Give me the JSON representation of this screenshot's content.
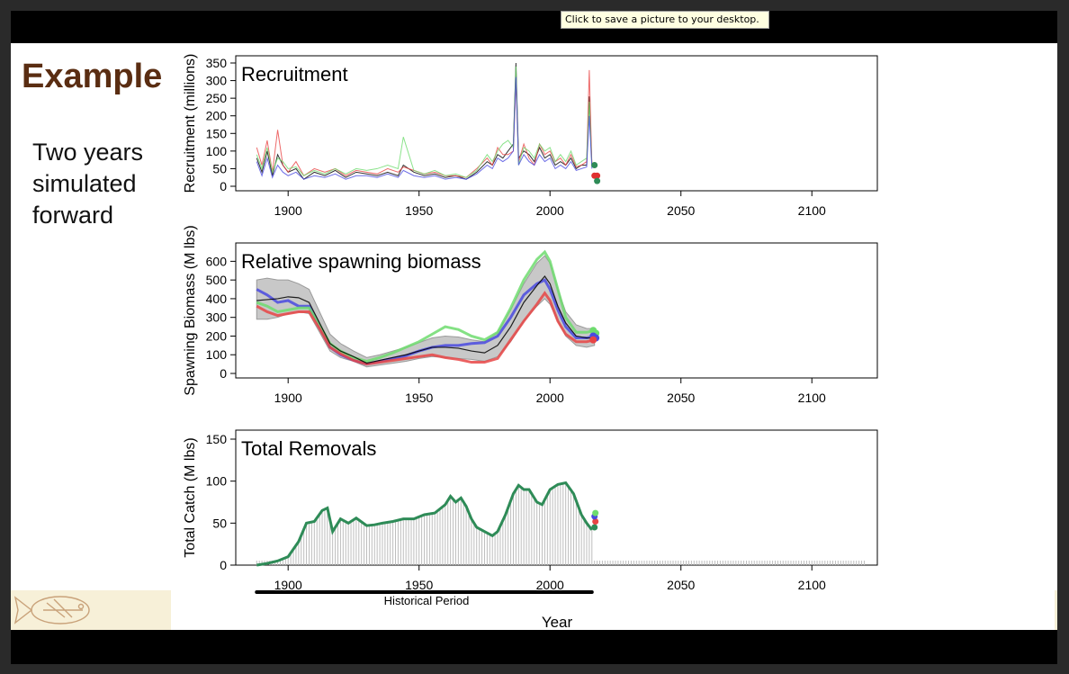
{
  "tooltip": "Click to save a picture to your desktop.",
  "slide": {
    "title": "Example",
    "bullet": "Two years simulated forward"
  },
  "colors": {
    "title": "#5a2d12",
    "red": "#e84545",
    "green": "#6edc6e",
    "blue": "#4a4ae0",
    "black": "#000000",
    "ci": "#c8c8c8",
    "catch": "#2e8b57",
    "bars": "#bdbdbd"
  },
  "x_label": "Year",
  "period_label": "Historical Period",
  "chart_data": [
    {
      "type": "line",
      "title": "Recruitment",
      "ylabel": "Recruitment (millions)",
      "xlim": [
        1880,
        2125
      ],
      "ylim": [
        0,
        350
      ],
      "xticks": [
        1900,
        1950,
        2000,
        2050,
        2100
      ],
      "yticks": [
        0,
        50,
        100,
        150,
        200,
        250,
        300,
        350
      ],
      "x": [
        1888,
        1890,
        1892,
        1894,
        1896,
        1898,
        1900,
        1903,
        1906,
        1910,
        1914,
        1918,
        1922,
        1926,
        1930,
        1934,
        1938,
        1942,
        1944,
        1948,
        1952,
        1956,
        1960,
        1964,
        1968,
        1972,
        1976,
        1978,
        1980,
        1982,
        1984,
        1986,
        1987,
        1988,
        1990,
        1992,
        1994,
        1996,
        1998,
        2000,
        2002,
        2004,
        2006,
        2008,
        2010,
        2012,
        2014,
        2015,
        2016
      ],
      "series": [
        {
          "values": [
            80,
            40,
            100,
            30,
            90,
            60,
            40,
            50,
            20,
            40,
            30,
            45,
            25,
            40,
            35,
            30,
            40,
            30,
            60,
            40,
            30,
            35,
            25,
            30,
            20,
            40,
            70,
            60,
            90,
            80,
            100,
            120,
            350,
            80,
            100,
            90,
            70,
            110,
            80,
            90,
            60,
            70,
            60,
            80,
            50,
            60,
            60,
            255,
            60
          ]
        },
        {
          "values": [
            110,
            60,
            130,
            40,
            160,
            60,
            40,
            70,
            30,
            50,
            40,
            50,
            30,
            45,
            40,
            35,
            50,
            40,
            55,
            45,
            35,
            40,
            30,
            30,
            25,
            50,
            80,
            60,
            110,
            90,
            90,
            100,
            300,
            70,
            120,
            80,
            60,
            120,
            90,
            100,
            70,
            80,
            60,
            90,
            55,
            60,
            70,
            330,
            60
          ]
        },
        {
          "values": [
            90,
            50,
            110,
            40,
            80,
            70,
            50,
            55,
            30,
            45,
            35,
            50,
            35,
            50,
            45,
            50,
            60,
            50,
            140,
            45,
            35,
            45,
            30,
            35,
            25,
            45,
            90,
            70,
            100,
            120,
            130,
            110,
            340,
            60,
            110,
            100,
            80,
            120,
            100,
            110,
            70,
            90,
            70,
            100,
            60,
            70,
            80,
            240,
            55
          ]
        },
        {
          "values": [
            70,
            30,
            80,
            25,
            60,
            40,
            30,
            40,
            20,
            30,
            25,
            35,
            20,
            30,
            30,
            25,
            35,
            25,
            45,
            30,
            25,
            30,
            20,
            25,
            20,
            35,
            60,
            50,
            80,
            70,
            80,
            100,
            310,
            60,
            90,
            70,
            60,
            90,
            70,
            80,
            50,
            60,
            50,
            70,
            45,
            50,
            55,
            200,
            50
          ]
        }
      ],
      "projection": {
        "x": [
          2017,
          2018
        ],
        "red": 30,
        "green_high": 60,
        "green_low": 15
      }
    },
    {
      "type": "line",
      "title": "Relative spawning biomass",
      "ylabel": "Spawning Biomass (M lbs)",
      "xlim": [
        1880,
        2125
      ],
      "ylim": [
        0,
        650
      ],
      "xticks": [
        1900,
        1950,
        2000,
        2050,
        2100
      ],
      "yticks": [
        0,
        100,
        200,
        300,
        400,
        500,
        600
      ],
      "x": [
        1888,
        1892,
        1896,
        1900,
        1904,
        1908,
        1912,
        1916,
        1920,
        1925,
        1930,
        1935,
        1940,
        1945,
        1950,
        1955,
        1960,
        1965,
        1970,
        1975,
        1980,
        1985,
        1990,
        1995,
        1998,
        2000,
        2003,
        2006,
        2010,
        2014,
        2017
      ],
      "series": [
        {
          "name_color": "black",
          "values": [
            390,
            395,
            400,
            410,
            405,
            380,
            270,
            160,
            120,
            90,
            55,
            70,
            85,
            100,
            120,
            140,
            140,
            135,
            120,
            110,
            150,
            250,
            380,
            470,
            520,
            480,
            360,
            270,
            200,
            190,
            190
          ]
        },
        {
          "name_color": "blue",
          "values": [
            450,
            420,
            380,
            390,
            360,
            360,
            250,
            140,
            100,
            70,
            50,
            65,
            80,
            95,
            120,
            140,
            150,
            150,
            160,
            165,
            200,
            300,
            420,
            480,
            500,
            450,
            340,
            250,
            190,
            190,
            200
          ]
        },
        {
          "name_color": "green",
          "values": [
            380,
            360,
            330,
            340,
            350,
            350,
            260,
            160,
            120,
            85,
            65,
            85,
            110,
            140,
            170,
            210,
            250,
            235,
            200,
            180,
            220,
            350,
            500,
            610,
            650,
            600,
            450,
            300,
            220,
            220,
            230
          ]
        },
        {
          "name_color": "red",
          "values": [
            360,
            330,
            310,
            320,
            330,
            330,
            240,
            140,
            105,
            70,
            50,
            60,
            70,
            80,
            90,
            100,
            85,
            75,
            60,
            60,
            80,
            180,
            280,
            370,
            430,
            390,
            280,
            210,
            170,
            170,
            180
          ]
        }
      ],
      "ci_upper": [
        500,
        510,
        500,
        500,
        480,
        450,
        330,
        210,
        160,
        120,
        85,
        100,
        120,
        140,
        165,
        190,
        200,
        195,
        180,
        170,
        220,
        340,
        480,
        590,
        630,
        590,
        450,
        330,
        260,
        240,
        240
      ],
      "ci_lower": [
        290,
        290,
        300,
        320,
        330,
        320,
        220,
        120,
        85,
        65,
        35,
        45,
        55,
        65,
        80,
        90,
        85,
        80,
        75,
        65,
        90,
        170,
        280,
        360,
        400,
        370,
        280,
        200,
        150,
        140,
        150
      ]
    },
    {
      "type": "area",
      "title": "Total Removals",
      "ylabel": "Total Catch (M lbs)",
      "xlim": [
        1880,
        2125
      ],
      "ylim": [
        0,
        150
      ],
      "xticks": [
        1900,
        1950,
        2000,
        2050,
        2100
      ],
      "yticks": [
        0,
        50,
        100,
        150
      ],
      "x": [
        1888,
        1892,
        1896,
        1900,
        1904,
        1907,
        1910,
        1913,
        1915,
        1917,
        1920,
        1923,
        1926,
        1930,
        1933,
        1936,
        1940,
        1944,
        1948,
        1952,
        1956,
        1960,
        1962,
        1964,
        1966,
        1968,
        1970,
        1972,
        1975,
        1978,
        1980,
        1983,
        1986,
        1988,
        1990,
        1992,
        1995,
        1997,
        2000,
        2003,
        2006,
        2009,
        2012,
        2014,
        2016
      ],
      "values": [
        0,
        2,
        5,
        10,
        28,
        50,
        52,
        65,
        68,
        40,
        55,
        50,
        56,
        47,
        48,
        50,
        52,
        55,
        55,
        60,
        62,
        72,
        82,
        75,
        80,
        70,
        55,
        45,
        40,
        35,
        40,
        60,
        85,
        95,
        90,
        90,
        75,
        72,
        90,
        96,
        98,
        85,
        60,
        50,
        42
      ],
      "bar_range": [
        1888,
        2120
      ],
      "projection": {
        "x": 2017,
        "values": [
          45,
          52,
          58,
          62
        ]
      }
    }
  ]
}
